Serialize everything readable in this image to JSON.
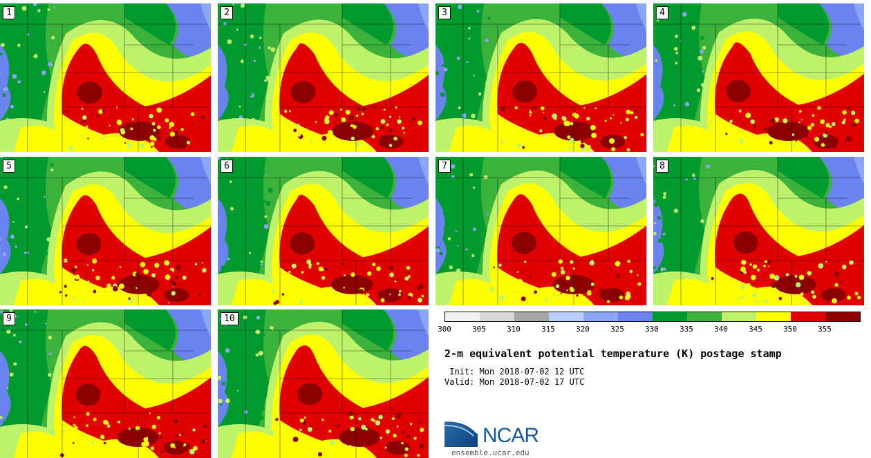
{
  "title": "2-m equivalent potential temperature (K) postage stamp",
  "init_time": " Init: Mon 2018-07-02 12 UTC",
  "valid_time": "Valid: Mon 2018-07-02 17 UTC",
  "members": [
    "1",
    "2",
    "3",
    "4",
    "5",
    "6",
    "7",
    "8",
    "9",
    "10"
  ],
  "colorbar": {
    "units": "K",
    "ticks": [
      "300",
      "305",
      "310",
      "315",
      "320",
      "325",
      "330",
      "335",
      "340",
      "345",
      "350",
      "355"
    ],
    "colors": [
      "#f2f2f2",
      "#d9d9d9",
      "#a6a6a6",
      "#b8cffc",
      "#8da5f5",
      "#6b83ee",
      "#009a2e",
      "#3cb13c",
      "#bff26b",
      "#ffff00",
      "#e10000",
      "#8b0000"
    ]
  },
  "logo": {
    "text": "NCAR",
    "url_text": "ensemble.ucar.edu"
  }
}
